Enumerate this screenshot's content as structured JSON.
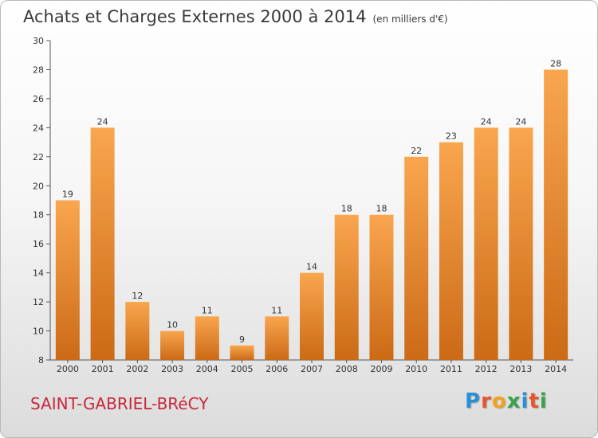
{
  "header": {
    "title": "Achats et Charges Externes 2000 à 2014",
    "unit": "(en milliers d'€)"
  },
  "footer": {
    "city": "SAINT-GABRIEL-BRéCY",
    "logo": [
      "P",
      "r",
      "o",
      "x",
      "i",
      "t",
      "i"
    ]
  },
  "colors": {
    "bar_light": "#f9a64e",
    "bar_dark": "#cc6a16",
    "axis": "#555555",
    "city": "#c8283c",
    "logo": [
      "#2a8fd6",
      "#e8542c",
      "#f2a21c",
      "#3aa34a",
      "#2a8fd6",
      "#e8542c",
      "#3aa34a"
    ]
  },
  "chart_data": {
    "type": "bar",
    "title": "Achats et Charges Externes 2000 à 2014",
    "categories": [
      "2000",
      "2001",
      "2002",
      "2003",
      "2004",
      "2005",
      "2006",
      "2007",
      "2008",
      "2009",
      "2010",
      "2011",
      "2012",
      "2013",
      "2014"
    ],
    "values": [
      19,
      24,
      12,
      10,
      11,
      9,
      11,
      14,
      18,
      18,
      22,
      23,
      24,
      24,
      28
    ],
    "ylim": [
      8,
      30
    ],
    "yticks": [
      8,
      10,
      12,
      14,
      16,
      18,
      20,
      22,
      24,
      26,
      28,
      30
    ],
    "grid": false
  }
}
